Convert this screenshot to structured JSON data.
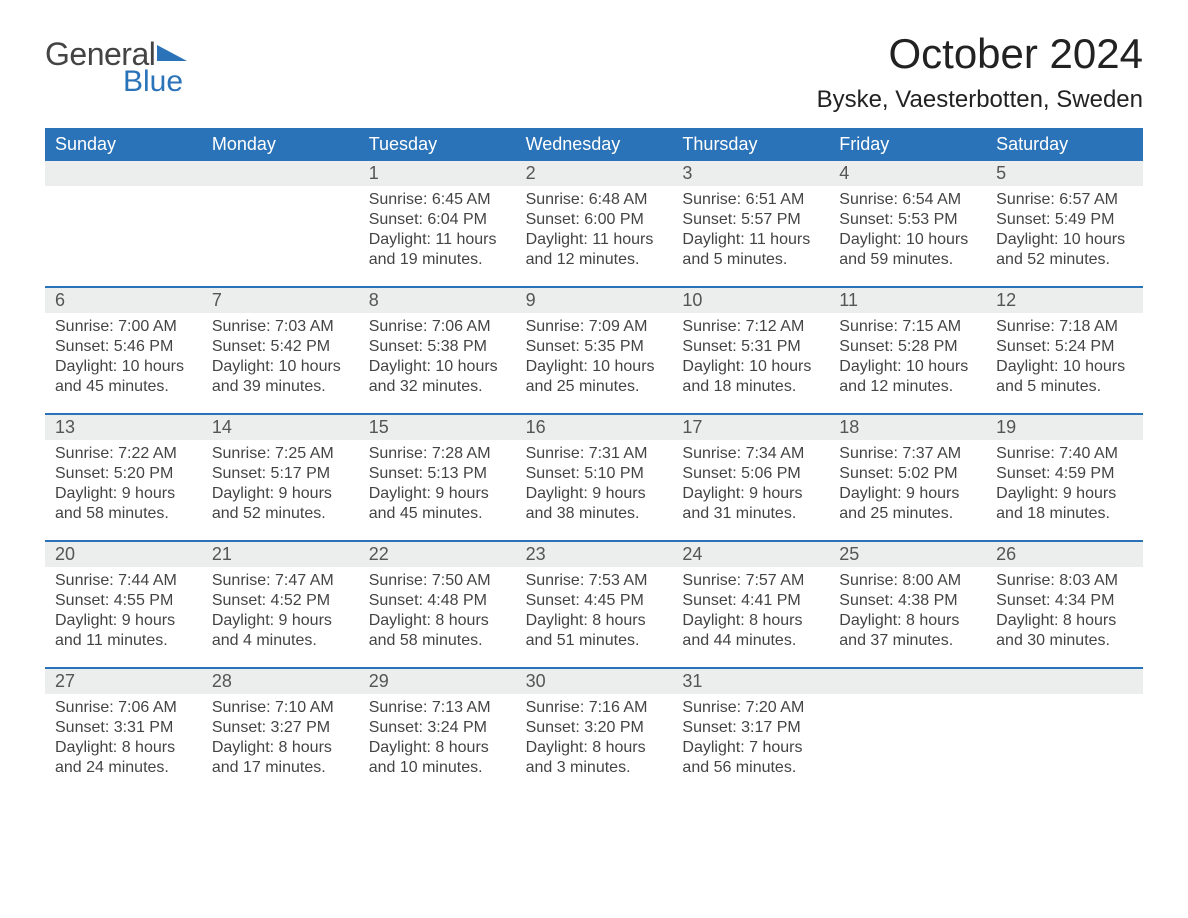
{
  "logo": {
    "general": "General",
    "blue": "Blue",
    "tri_color": "#2b73b8"
  },
  "header": {
    "month_title": "October 2024",
    "location": "Byske, Vaesterbotten, Sweden"
  },
  "calendar": {
    "daynames": [
      "Sunday",
      "Monday",
      "Tuesday",
      "Wednesday",
      "Thursday",
      "Friday",
      "Saturday"
    ],
    "header_bg": "#2b73b8",
    "header_text": "#ffffff",
    "daynum_bg": "#eceded",
    "week_border": "#2b73b8",
    "weeks": [
      {
        "days": [
          null,
          null,
          {
            "n": "1",
            "sunrise": "Sunrise: 6:45 AM",
            "sunset": "Sunset: 6:04 PM",
            "dl1": "Daylight: 11 hours",
            "dl2": "and 19 minutes."
          },
          {
            "n": "2",
            "sunrise": "Sunrise: 6:48 AM",
            "sunset": "Sunset: 6:00 PM",
            "dl1": "Daylight: 11 hours",
            "dl2": "and 12 minutes."
          },
          {
            "n": "3",
            "sunrise": "Sunrise: 6:51 AM",
            "sunset": "Sunset: 5:57 PM",
            "dl1": "Daylight: 11 hours",
            "dl2": "and 5 minutes."
          },
          {
            "n": "4",
            "sunrise": "Sunrise: 6:54 AM",
            "sunset": "Sunset: 5:53 PM",
            "dl1": "Daylight: 10 hours",
            "dl2": "and 59 minutes."
          },
          {
            "n": "5",
            "sunrise": "Sunrise: 6:57 AM",
            "sunset": "Sunset: 5:49 PM",
            "dl1": "Daylight: 10 hours",
            "dl2": "and 52 minutes."
          }
        ]
      },
      {
        "days": [
          {
            "n": "6",
            "sunrise": "Sunrise: 7:00 AM",
            "sunset": "Sunset: 5:46 PM",
            "dl1": "Daylight: 10 hours",
            "dl2": "and 45 minutes."
          },
          {
            "n": "7",
            "sunrise": "Sunrise: 7:03 AM",
            "sunset": "Sunset: 5:42 PM",
            "dl1": "Daylight: 10 hours",
            "dl2": "and 39 minutes."
          },
          {
            "n": "8",
            "sunrise": "Sunrise: 7:06 AM",
            "sunset": "Sunset: 5:38 PM",
            "dl1": "Daylight: 10 hours",
            "dl2": "and 32 minutes."
          },
          {
            "n": "9",
            "sunrise": "Sunrise: 7:09 AM",
            "sunset": "Sunset: 5:35 PM",
            "dl1": "Daylight: 10 hours",
            "dl2": "and 25 minutes."
          },
          {
            "n": "10",
            "sunrise": "Sunrise: 7:12 AM",
            "sunset": "Sunset: 5:31 PM",
            "dl1": "Daylight: 10 hours",
            "dl2": "and 18 minutes."
          },
          {
            "n": "11",
            "sunrise": "Sunrise: 7:15 AM",
            "sunset": "Sunset: 5:28 PM",
            "dl1": "Daylight: 10 hours",
            "dl2": "and 12 minutes."
          },
          {
            "n": "12",
            "sunrise": "Sunrise: 7:18 AM",
            "sunset": "Sunset: 5:24 PM",
            "dl1": "Daylight: 10 hours",
            "dl2": "and 5 minutes."
          }
        ]
      },
      {
        "days": [
          {
            "n": "13",
            "sunrise": "Sunrise: 7:22 AM",
            "sunset": "Sunset: 5:20 PM",
            "dl1": "Daylight: 9 hours",
            "dl2": "and 58 minutes."
          },
          {
            "n": "14",
            "sunrise": "Sunrise: 7:25 AM",
            "sunset": "Sunset: 5:17 PM",
            "dl1": "Daylight: 9 hours",
            "dl2": "and 52 minutes."
          },
          {
            "n": "15",
            "sunrise": "Sunrise: 7:28 AM",
            "sunset": "Sunset: 5:13 PM",
            "dl1": "Daylight: 9 hours",
            "dl2": "and 45 minutes."
          },
          {
            "n": "16",
            "sunrise": "Sunrise: 7:31 AM",
            "sunset": "Sunset: 5:10 PM",
            "dl1": "Daylight: 9 hours",
            "dl2": "and 38 minutes."
          },
          {
            "n": "17",
            "sunrise": "Sunrise: 7:34 AM",
            "sunset": "Sunset: 5:06 PM",
            "dl1": "Daylight: 9 hours",
            "dl2": "and 31 minutes."
          },
          {
            "n": "18",
            "sunrise": "Sunrise: 7:37 AM",
            "sunset": "Sunset: 5:02 PM",
            "dl1": "Daylight: 9 hours",
            "dl2": "and 25 minutes."
          },
          {
            "n": "19",
            "sunrise": "Sunrise: 7:40 AM",
            "sunset": "Sunset: 4:59 PM",
            "dl1": "Daylight: 9 hours",
            "dl2": "and 18 minutes."
          }
        ]
      },
      {
        "days": [
          {
            "n": "20",
            "sunrise": "Sunrise: 7:44 AM",
            "sunset": "Sunset: 4:55 PM",
            "dl1": "Daylight: 9 hours",
            "dl2": "and 11 minutes."
          },
          {
            "n": "21",
            "sunrise": "Sunrise: 7:47 AM",
            "sunset": "Sunset: 4:52 PM",
            "dl1": "Daylight: 9 hours",
            "dl2": "and 4 minutes."
          },
          {
            "n": "22",
            "sunrise": "Sunrise: 7:50 AM",
            "sunset": "Sunset: 4:48 PM",
            "dl1": "Daylight: 8 hours",
            "dl2": "and 58 minutes."
          },
          {
            "n": "23",
            "sunrise": "Sunrise: 7:53 AM",
            "sunset": "Sunset: 4:45 PM",
            "dl1": "Daylight: 8 hours",
            "dl2": "and 51 minutes."
          },
          {
            "n": "24",
            "sunrise": "Sunrise: 7:57 AM",
            "sunset": "Sunset: 4:41 PM",
            "dl1": "Daylight: 8 hours",
            "dl2": "and 44 minutes."
          },
          {
            "n": "25",
            "sunrise": "Sunrise: 8:00 AM",
            "sunset": "Sunset: 4:38 PM",
            "dl1": "Daylight: 8 hours",
            "dl2": "and 37 minutes."
          },
          {
            "n": "26",
            "sunrise": "Sunrise: 8:03 AM",
            "sunset": "Sunset: 4:34 PM",
            "dl1": "Daylight: 8 hours",
            "dl2": "and 30 minutes."
          }
        ]
      },
      {
        "days": [
          {
            "n": "27",
            "sunrise": "Sunrise: 7:06 AM",
            "sunset": "Sunset: 3:31 PM",
            "dl1": "Daylight: 8 hours",
            "dl2": "and 24 minutes."
          },
          {
            "n": "28",
            "sunrise": "Sunrise: 7:10 AM",
            "sunset": "Sunset: 3:27 PM",
            "dl1": "Daylight: 8 hours",
            "dl2": "and 17 minutes."
          },
          {
            "n": "29",
            "sunrise": "Sunrise: 7:13 AM",
            "sunset": "Sunset: 3:24 PM",
            "dl1": "Daylight: 8 hours",
            "dl2": "and 10 minutes."
          },
          {
            "n": "30",
            "sunrise": "Sunrise: 7:16 AM",
            "sunset": "Sunset: 3:20 PM",
            "dl1": "Daylight: 8 hours",
            "dl2": "and 3 minutes."
          },
          {
            "n": "31",
            "sunrise": "Sunrise: 7:20 AM",
            "sunset": "Sunset: 3:17 PM",
            "dl1": "Daylight: 7 hours",
            "dl2": "and 56 minutes."
          },
          null,
          null
        ]
      }
    ]
  }
}
